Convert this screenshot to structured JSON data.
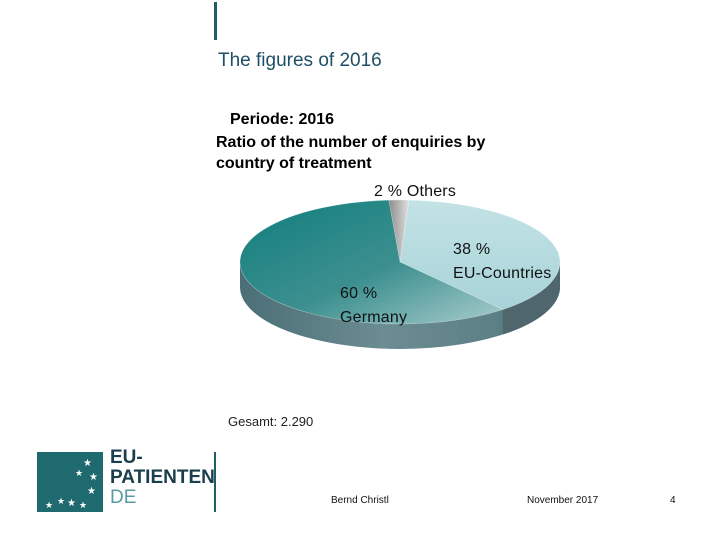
{
  "heading": "The figures of 2016",
  "period": "Periode: 2016",
  "chart_data": {
    "type": "pie",
    "title": "Ratio of the number of enquiries by country of treatment",
    "categories": [
      "Others",
      "EU-Countries",
      "Germany"
    ],
    "values": [
      2,
      38,
      60
    ],
    "unit": "%",
    "labels": [
      {
        "line1": "2 % Others",
        "line2": ""
      },
      {
        "line1": "38 %",
        "line2": "EU-Countries"
      },
      {
        "line1": "60 %",
        "line2": "Germany"
      }
    ],
    "colors": [
      "#c9c9c9",
      "#b9dde0",
      "#1e8584"
    ],
    "legend": "none",
    "grid": false
  },
  "total": "Gesamt: 2.290",
  "logo": {
    "line1": "EU-",
    "line2": "PATIENTEN",
    "line3": "DE"
  },
  "footer": {
    "author": "Bernd Christl",
    "date": "November 2017",
    "page": "4"
  }
}
